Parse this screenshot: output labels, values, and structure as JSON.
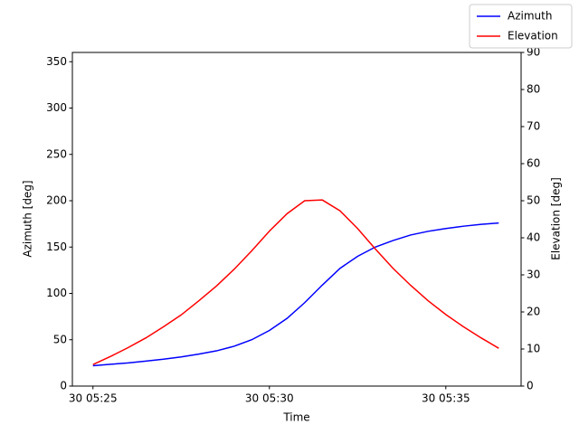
{
  "chart_data": {
    "type": "line",
    "xlabel": "Time",
    "ylabel": "Azimuth [deg]",
    "y2label": "Elevation [deg]",
    "x": [
      "30 05:25:00",
      "30 05:25:30",
      "30 05:26:00",
      "30 05:26:30",
      "30 05:27:00",
      "30 05:27:30",
      "30 05:28:00",
      "30 05:28:30",
      "30 05:29:00",
      "30 05:29:30",
      "30 05:30:00",
      "30 05:30:30",
      "30 05:31:00",
      "30 05:31:30",
      "30 05:32:00",
      "30 05:32:30",
      "30 05:33:00",
      "30 05:33:30",
      "30 05:34:00",
      "30 05:34:30",
      "30 05:35:00",
      "30 05:35:30",
      "30 05:36:00",
      "30 05:36:30"
    ],
    "series": [
      {
        "name": "Azimuth",
        "color": "#0000ff",
        "axis": "y",
        "values": [
          22,
          23.5,
          25,
          27,
          29,
          31.5,
          34.5,
          38,
          43,
          50,
          60,
          73,
          90,
          109,
          127,
          140,
          150,
          157,
          163,
          167,
          170,
          172.5,
          174.5,
          176
        ]
      },
      {
        "name": "Elevation",
        "color": "#ff0000",
        "axis": "y2",
        "values": [
          5.8,
          8,
          10.4,
          13,
          16,
          19.2,
          23,
          27,
          31.5,
          36.5,
          41.8,
          46.5,
          50,
          50.2,
          47.3,
          42.5,
          37,
          31.8,
          27.2,
          23,
          19.3,
          16,
          13,
          10.2
        ]
      }
    ],
    "xlim": [
      "30 05:24:25",
      "30 05:37:08"
    ],
    "xticks": [
      "30 05:25",
      "30 05:30",
      "30 05:35"
    ],
    "ylim": [
      0,
      360
    ],
    "yticks": [
      0,
      50,
      100,
      150,
      200,
      250,
      300,
      350
    ],
    "y2lim": [
      0,
      90
    ],
    "y2ticks": [
      0,
      10,
      20,
      30,
      40,
      50,
      60,
      70,
      80,
      90
    ],
    "legend": "upper right",
    "grid": false
  }
}
